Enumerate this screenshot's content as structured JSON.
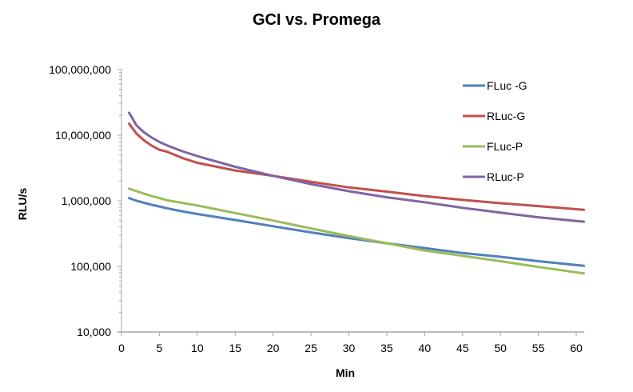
{
  "chart_data": {
    "type": "line",
    "title": "GCI vs. Promega",
    "xlabel": "Min",
    "ylabel": "RLU/s",
    "yscale": "log",
    "ylim": [
      10000,
      100000000
    ],
    "xlim": [
      0,
      60
    ],
    "x_ticks": [
      0,
      5,
      10,
      15,
      20,
      25,
      30,
      35,
      40,
      45,
      50,
      55,
      60
    ],
    "y_ticks": [
      10000,
      100000,
      1000000,
      10000000,
      100000000
    ],
    "y_tick_labels": [
      "10,000",
      "100,000",
      "1,000,000",
      "10,000,000",
      "100,000,000"
    ],
    "grid": false,
    "legend_position": "upper right (inside plot)",
    "x": [
      1,
      2,
      3,
      4,
      5,
      6,
      8,
      10,
      15,
      20,
      25,
      30,
      35,
      40,
      45,
      50,
      55,
      61
    ],
    "series": [
      {
        "name": "FLuc -G",
        "color": "#4F81BD",
        "values": [
          1100000,
          1000000,
          930000,
          870000,
          820000,
          770000,
          690000,
          630000,
          510000,
          410000,
          330000,
          270000,
          225000,
          190000,
          160000,
          140000,
          120000,
          102000
        ]
      },
      {
        "name": "RLuc-G",
        "color": "#C0504D",
        "values": [
          15000000,
          10500000,
          8300000,
          6900000,
          6000000,
          5600000,
          4500000,
          3800000,
          2900000,
          2400000,
          1950000,
          1600000,
          1380000,
          1180000,
          1030000,
          920000,
          830000,
          730000
        ]
      },
      {
        "name": "FLuc-P",
        "color": "#9BBB59",
        "values": [
          1530000,
          1400000,
          1280000,
          1180000,
          1100000,
          1020000,
          930000,
          850000,
          650000,
          500000,
          380000,
          290000,
          225000,
          175000,
          145000,
          120000,
          98000,
          78000
        ]
      },
      {
        "name": "RLuc-P",
        "color": "#8064A2",
        "values": [
          22000000,
          14000000,
          11000000,
          9200000,
          7900000,
          7000000,
          5700000,
          4800000,
          3300000,
          2400000,
          1800000,
          1400000,
          1130000,
          950000,
          780000,
          660000,
          560000,
          480000
        ]
      }
    ]
  },
  "axis_color": "#A6A6A6"
}
